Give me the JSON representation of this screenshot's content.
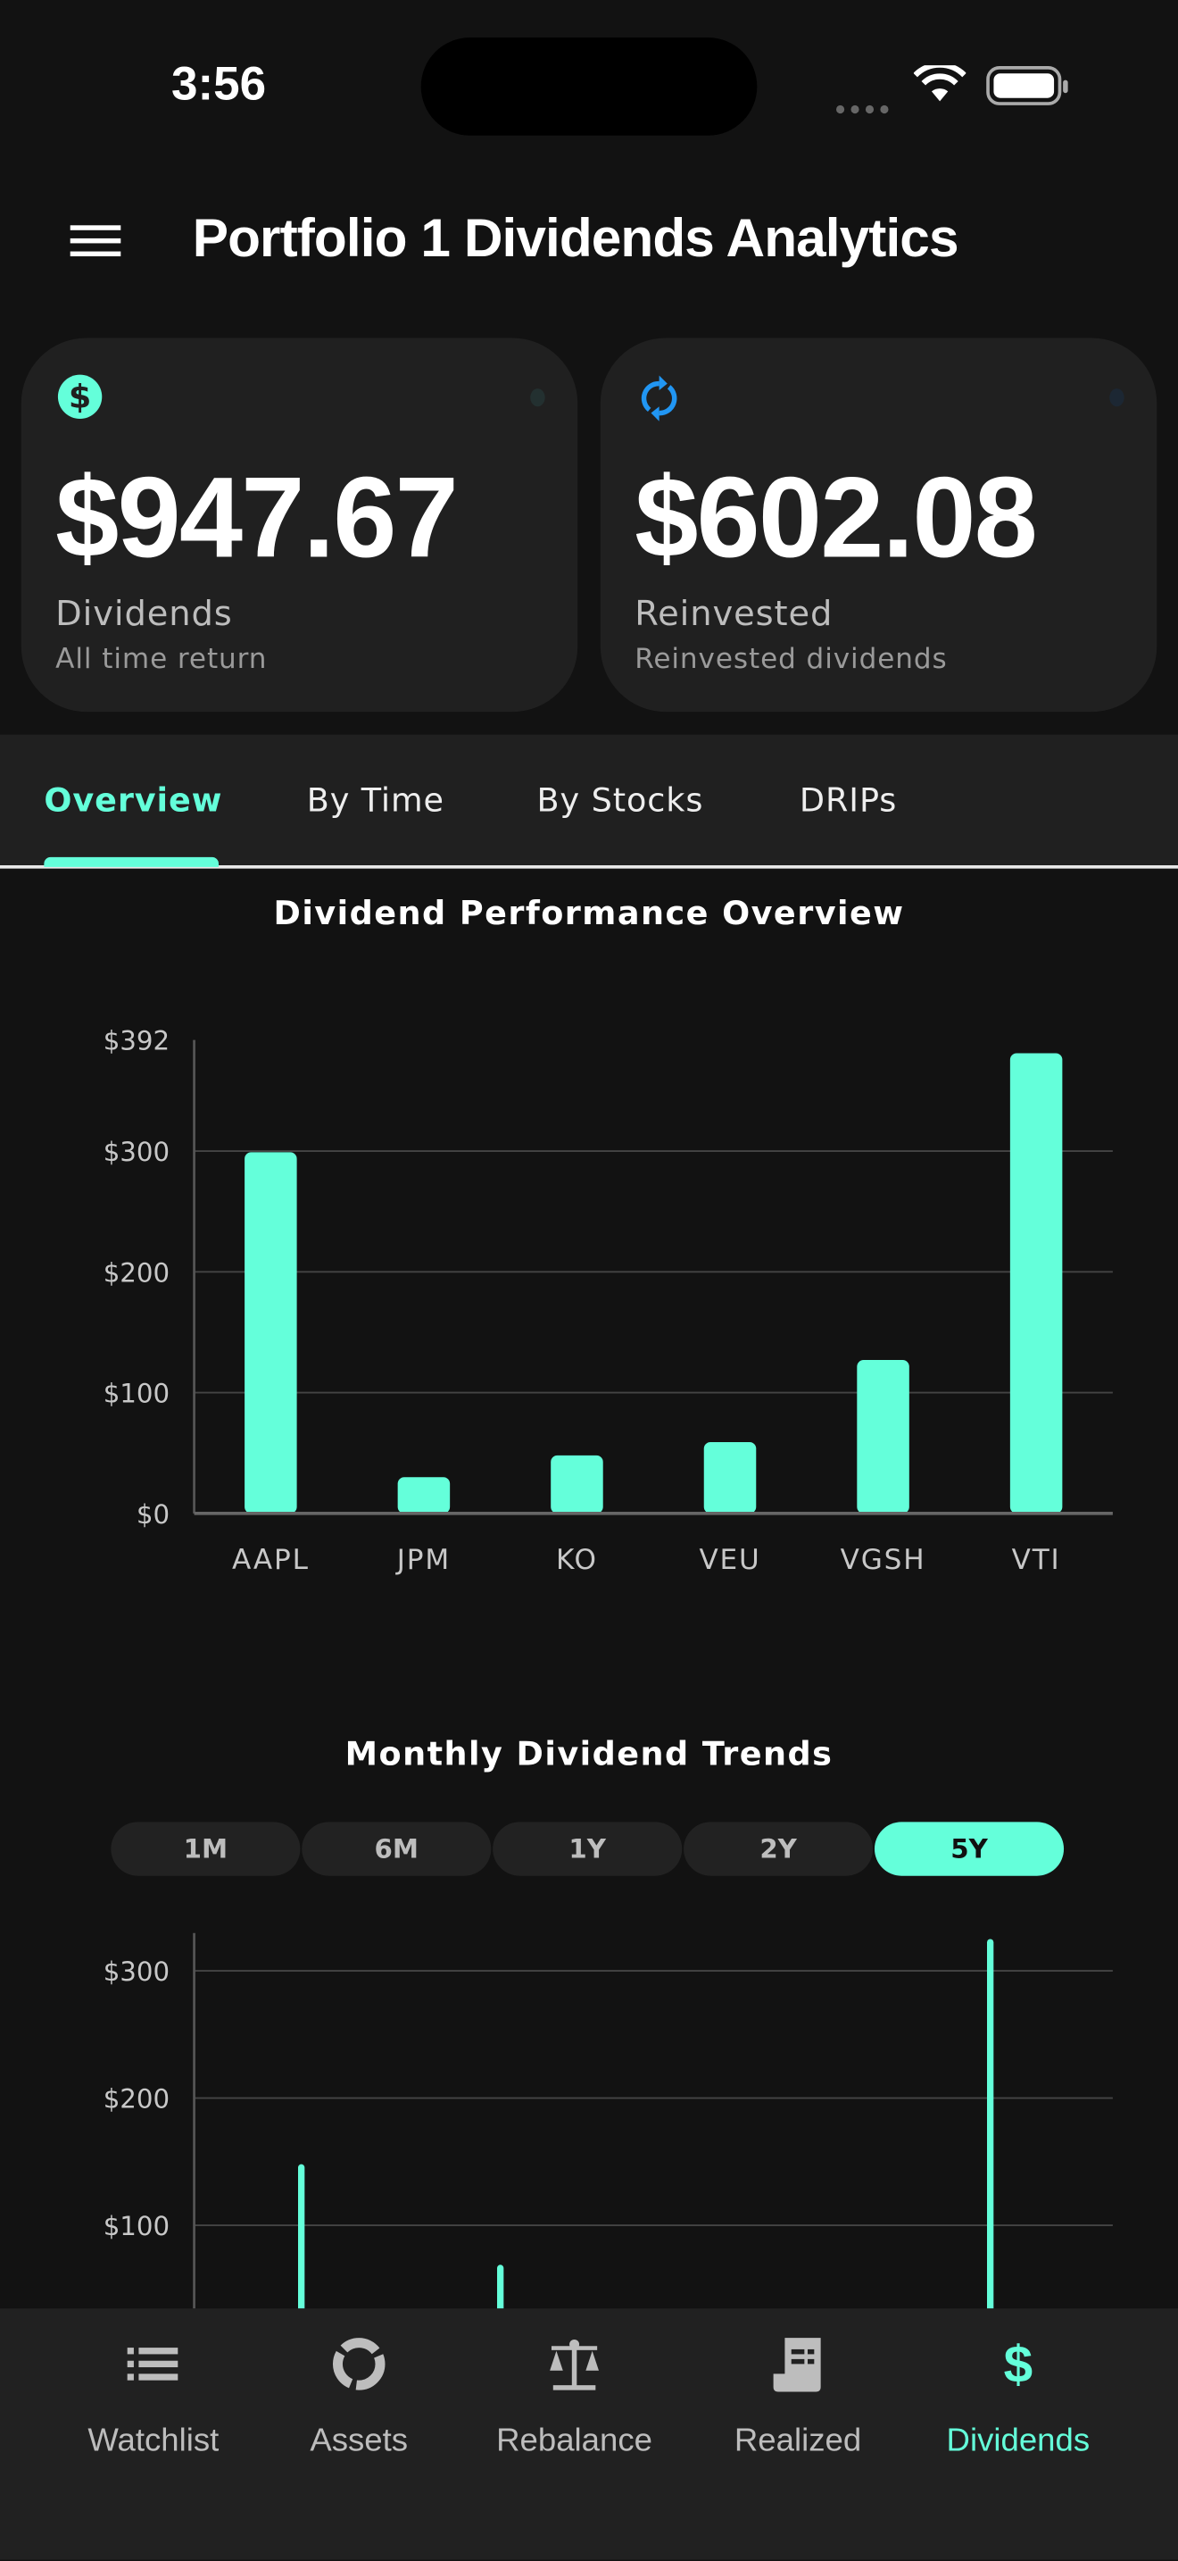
{
  "status_bar": {
    "time": "3:56"
  },
  "header": {
    "title": "Portfolio 1 Dividends Analytics",
    "menu_icon": "hamburger-icon"
  },
  "cards": [
    {
      "icon": "dollar-circle-icon",
      "value": "$947.67",
      "label": "Dividends",
      "sublabel": "All time return",
      "accent": "#64FFDA"
    },
    {
      "icon": "refresh-icon",
      "value": "$602.08",
      "label": "Reinvested",
      "sublabel": "Reinvested dividends",
      "accent": "#2196F3"
    }
  ],
  "tabs": [
    {
      "label": "Overview",
      "active": true
    },
    {
      "label": "By Time",
      "active": false
    },
    {
      "label": "By Stocks",
      "active": false
    },
    {
      "label": "DRIPs",
      "active": false
    }
  ],
  "colors": {
    "accent": "#64FFDA",
    "background": "#121212",
    "surface": "#202020"
  },
  "chart_data": [
    {
      "type": "bar",
      "title": "Dividend Performance Overview",
      "categories": [
        "AAPL",
        "JPM",
        "KO",
        "VEU",
        "VGSH",
        "VTI"
      ],
      "values": [
        299,
        30,
        48,
        59,
        127,
        381
      ],
      "ylim": [
        0,
        392
      ],
      "yticks": [
        0,
        100,
        200,
        300,
        392
      ],
      "ytick_labels": [
        "$0",
        "$100",
        "$200",
        "$300",
        "$392"
      ],
      "grid": true
    },
    {
      "type": "bar",
      "title": "Monthly Dividend Trends",
      "x_unit": "months",
      "xlim": [
        0,
        60
      ],
      "x": [
        7,
        20,
        52
      ],
      "values": [
        148,
        69,
        325
      ],
      "ylim": [
        0,
        340
      ],
      "yticks": [
        100,
        200,
        300
      ],
      "ytick_labels": [
        "$100",
        "$200",
        "$300"
      ],
      "grid": true
    }
  ],
  "range_selector": {
    "options": [
      "1M",
      "6M",
      "1Y",
      "2Y",
      "5Y"
    ],
    "selected": "5Y"
  },
  "bottom_nav": [
    {
      "label": "Watchlist",
      "icon": "list-icon",
      "active": false
    },
    {
      "label": "Assets",
      "icon": "donut-icon",
      "active": false
    },
    {
      "label": "Rebalance",
      "icon": "scale-icon",
      "active": false
    },
    {
      "label": "Realized",
      "icon": "receipt-icon",
      "active": false
    },
    {
      "label": "Dividends",
      "icon": "dollar-icon",
      "active": true
    }
  ]
}
